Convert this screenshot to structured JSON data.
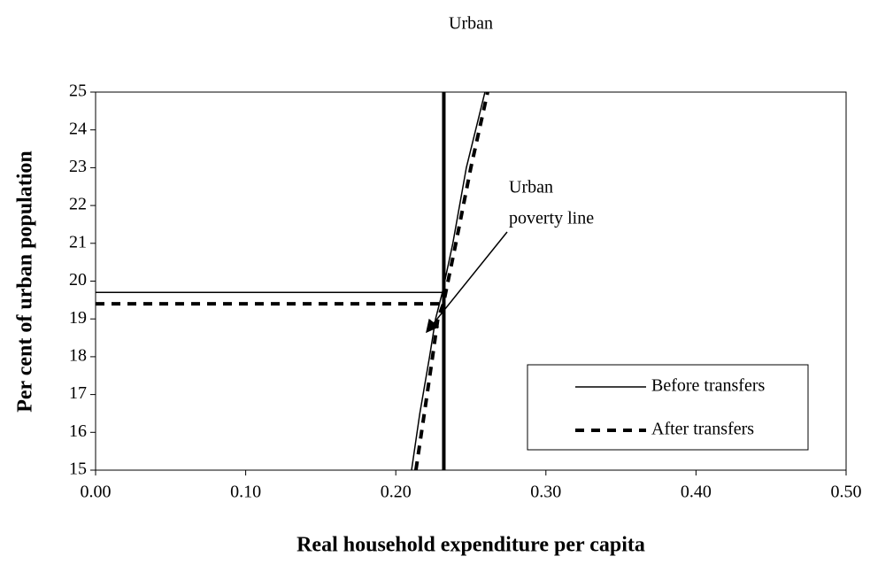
{
  "chart_data": {
    "type": "line",
    "title": "Urban",
    "x_label": "Real household expenditure per capita",
    "y_label": "Per cent of urban population",
    "xlim": [
      0,
      0.5
    ],
    "xticks": [
      {
        "value": 0,
        "label": "0.00"
      },
      {
        "value": 0.1,
        "label": "0.10"
      },
      {
        "value": 0.2,
        "label": "0.20"
      },
      {
        "value": 0.3,
        "label": "0.30"
      },
      {
        "value": 0.4,
        "label": "0.40"
      },
      {
        "value": 0.5,
        "label": "0.50"
      }
    ],
    "ylim": [
      15,
      25
    ],
    "yticks": [
      15,
      16,
      17,
      18,
      19,
      20,
      21,
      22,
      23,
      24,
      25
    ],
    "legend": "lower right",
    "series": [
      {
        "name": "Before transfers",
        "color": "#000000",
        "dashed": false,
        "x": [
          0.2105,
          0.216,
          0.2225,
          0.2265,
          0.231,
          0.238,
          0.247,
          0.2594
        ],
        "values": [
          15,
          16.5,
          18,
          19,
          19.7,
          21,
          23,
          25
        ],
        "hline": 19.7
      },
      {
        "name": "After transfers",
        "color": "#000000",
        "dashed": true,
        "x": [
          0.2134,
          0.219,
          0.2245,
          0.228,
          0.2317,
          0.24,
          0.25,
          0.2612
        ],
        "values": [
          15,
          16.5,
          18,
          19,
          19.4,
          21,
          23,
          25
        ],
        "hline": 19.4
      }
    ],
    "poverty_line": 0.232,
    "annotation": [
      "Urban",
      "poverty line"
    ]
  }
}
